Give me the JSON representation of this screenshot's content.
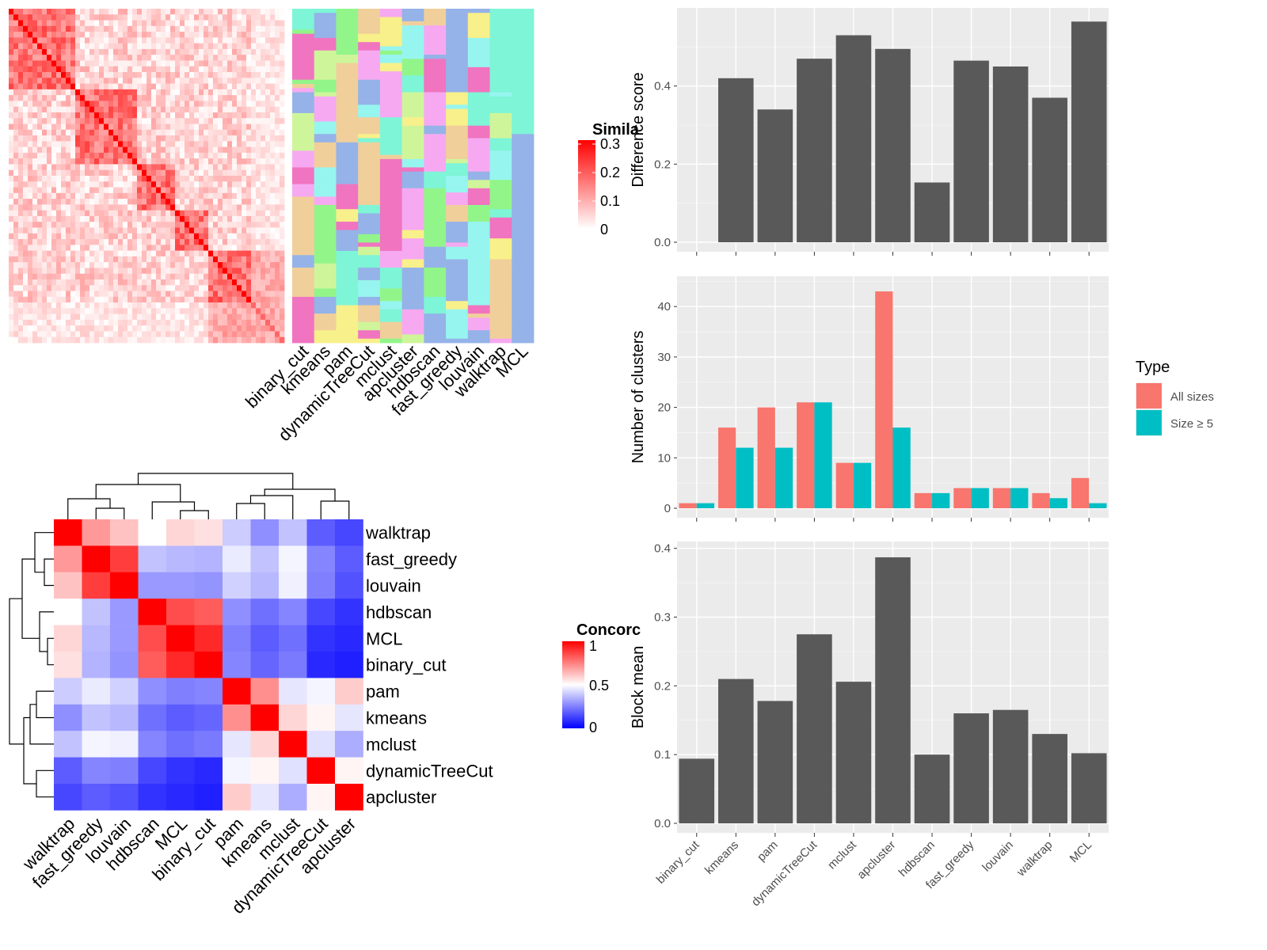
{
  "methods": [
    "binary_cut",
    "kmeans",
    "pam",
    "dynamicTreeCut",
    "mclust",
    "apcluster",
    "hdbscan",
    "fast_greedy",
    "louvain",
    "walktrap",
    "MCL"
  ],
  "similarity_heatmap": {
    "legend_title": "Simila",
    "legend_ticks": [
      "0.3",
      "0.2",
      "0.1",
      "0"
    ],
    "colors": {
      "high": "#ff0000",
      "low": "#ffffff"
    }
  },
  "concordance_heatmap": {
    "legend_title": "Concorc",
    "legend_ticks": [
      "1",
      "0.5",
      "0"
    ],
    "colors": {
      "high": "#ff0000",
      "mid": "#ffffff",
      "low": "#0000ff"
    },
    "order": [
      "walktrap",
      "fast_greedy",
      "louvain",
      "hdbscan",
      "MCL",
      "binary_cut",
      "pam",
      "kmeans",
      "mclust",
      "dynamicTreeCut",
      "apcluster"
    ],
    "matrix": [
      [
        1.0,
        0.7,
        0.62,
        0.5,
        0.58,
        0.56,
        0.4,
        0.28,
        0.38,
        0.18,
        0.14
      ],
      [
        0.7,
        1.0,
        0.88,
        0.38,
        0.36,
        0.35,
        0.46,
        0.38,
        0.48,
        0.26,
        0.18
      ],
      [
        0.62,
        0.88,
        1.0,
        0.3,
        0.3,
        0.29,
        0.41,
        0.36,
        0.47,
        0.25,
        0.16
      ],
      [
        0.5,
        0.38,
        0.3,
        1.0,
        0.85,
        0.82,
        0.28,
        0.22,
        0.26,
        0.14,
        0.1
      ],
      [
        0.58,
        0.36,
        0.3,
        0.85,
        1.0,
        0.92,
        0.25,
        0.18,
        0.22,
        0.1,
        0.08
      ],
      [
        0.56,
        0.35,
        0.29,
        0.82,
        0.92,
        1.0,
        0.26,
        0.2,
        0.24,
        0.08,
        0.06
      ],
      [
        0.4,
        0.46,
        0.41,
        0.28,
        0.25,
        0.26,
        1.0,
        0.72,
        0.45,
        0.48,
        0.6
      ],
      [
        0.28,
        0.38,
        0.36,
        0.22,
        0.18,
        0.2,
        0.72,
        1.0,
        0.58,
        0.52,
        0.45
      ],
      [
        0.38,
        0.48,
        0.47,
        0.26,
        0.22,
        0.24,
        0.45,
        0.58,
        1.0,
        0.44,
        0.34
      ],
      [
        0.18,
        0.26,
        0.25,
        0.14,
        0.1,
        0.08,
        0.48,
        0.52,
        0.44,
        1.0,
        0.52
      ],
      [
        0.14,
        0.18,
        0.16,
        0.1,
        0.08,
        0.06,
        0.6,
        0.45,
        0.34,
        0.52,
        1.0
      ]
    ]
  },
  "chart_data": [
    {
      "type": "bar",
      "title": "",
      "xlabel": "",
      "ylabel": "Difference score",
      "categories": [
        "binary_cut",
        "kmeans",
        "pam",
        "dynamicTreeCut",
        "mclust",
        "apcluster",
        "hdbscan",
        "fast_greedy",
        "louvain",
        "walktrap",
        "MCL"
      ],
      "values": [
        0.0,
        0.42,
        0.34,
        0.47,
        0.53,
        0.495,
        0.153,
        0.465,
        0.45,
        0.37,
        0.565
      ],
      "yticks": [
        "0.0",
        "0.2",
        "0.4"
      ],
      "ylim": [
        0,
        0.6
      ],
      "grid": true
    },
    {
      "type": "bar",
      "title": "",
      "xlabel": "",
      "ylabel": "Number of clusters",
      "categories": [
        "binary_cut",
        "kmeans",
        "pam",
        "dynamicTreeCut",
        "mclust",
        "apcluster",
        "hdbscan",
        "fast_greedy",
        "louvain",
        "walktrap",
        "MCL"
      ],
      "series": [
        {
          "name": "All sizes",
          "color": "#f8766d",
          "values": [
            1,
            16,
            20,
            21,
            9,
            43,
            3,
            4,
            4,
            3,
            6
          ]
        },
        {
          "name": "Size ≥ 5",
          "color": "#00bfc4",
          "values": [
            1,
            12,
            12,
            21,
            9,
            16,
            3,
            4,
            4,
            2,
            1
          ]
        }
      ],
      "legend_title": "Type",
      "legend_position": "right",
      "yticks": [
        "0",
        "10",
        "20",
        "30",
        "40"
      ],
      "ylim": [
        0,
        46
      ],
      "grid": true
    },
    {
      "type": "bar",
      "title": "",
      "xlabel": "",
      "ylabel": "Block mean",
      "categories": [
        "binary_cut",
        "kmeans",
        "pam",
        "dynamicTreeCut",
        "mclust",
        "apcluster",
        "hdbscan",
        "fast_greedy",
        "louvain",
        "walktrap",
        "MCL"
      ],
      "values": [
        0.094,
        0.21,
        0.178,
        0.275,
        0.206,
        0.387,
        0.1,
        0.16,
        0.165,
        0.13,
        0.102
      ],
      "yticks": [
        "0.0",
        "0.1",
        "0.2",
        "0.3",
        "0.4"
      ],
      "ylim": [
        0,
        0.41
      ],
      "grid": true
    }
  ]
}
